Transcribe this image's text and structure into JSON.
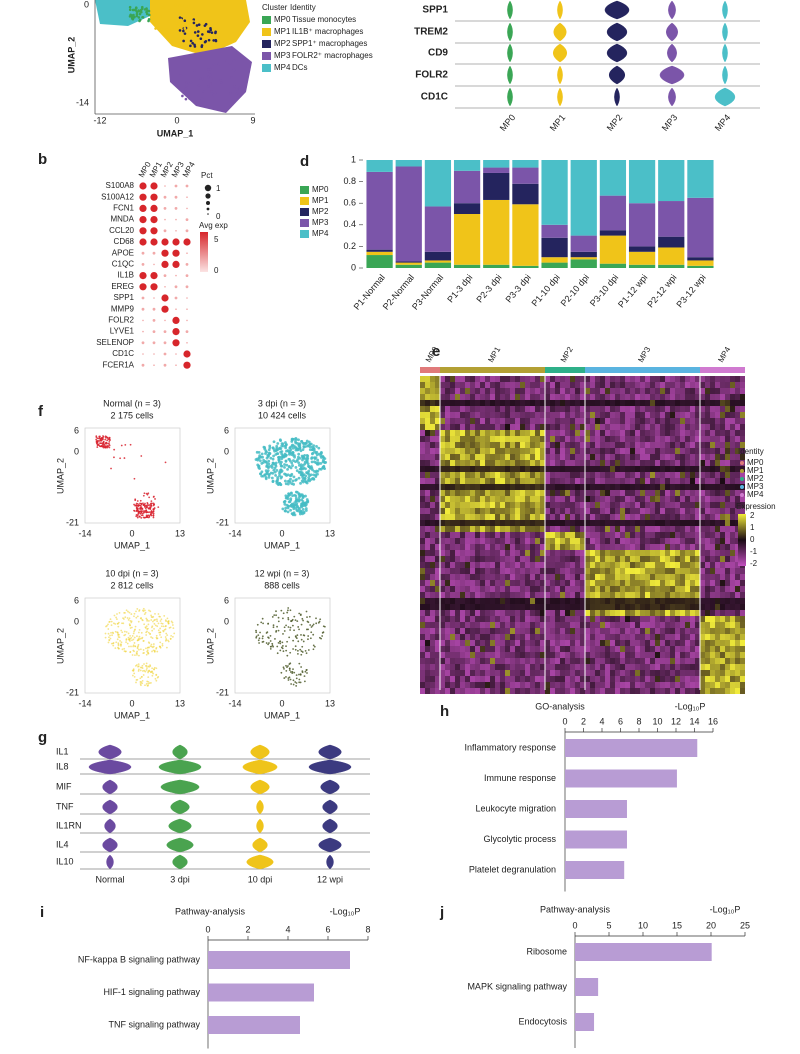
{
  "panel_a": {
    "y_label": "UMAP_2",
    "x_label": "UMAP_1",
    "y_ticks": [
      "0",
      "-14"
    ],
    "x_ticks": [
      "-12",
      "0",
      "9"
    ],
    "cluster_header": "Cluster",
    "identity_header": "Identity",
    "legend": [
      {
        "cluster": "MP0",
        "identity": "Tissue monocytes",
        "color": "#3aa655"
      },
      {
        "cluster": "MP1",
        "identity": "IL1B⁺ macrophages",
        "color": "#f0c419"
      },
      {
        "cluster": "MP2",
        "identity": "SPP1⁺ macrophages",
        "color": "#24245e"
      },
      {
        "cluster": "MP3",
        "identity": "FOLR2⁺ macrophages",
        "color": "#7b55a9"
      },
      {
        "cluster": "MP4",
        "identity": "DCs",
        "color": "#4bbfc8"
      }
    ]
  },
  "panel_violin": {
    "genes": [
      "SPP1",
      "TREM2",
      "CD9",
      "FOLR2",
      "CD1C"
    ],
    "clusters": [
      "MP0",
      "MP1",
      "MP2",
      "MP3",
      "MP4"
    ]
  },
  "panel_b": {
    "label": "b",
    "genes": [
      "S100A8",
      "S100A12",
      "FCN1",
      "MNDA",
      "CCL20",
      "CD68",
      "APOE",
      "C1QC",
      "IL1B",
      "EREG",
      "SPP1",
      "MMP9",
      "FOLR2",
      "LYVE1",
      "SELENOP",
      "CD1C",
      "FCER1A"
    ],
    "clusters": [
      "MP0",
      "MP1",
      "MP2",
      "MP3",
      "MP4"
    ],
    "pct_title": "Pct",
    "pct_ticks": [
      "1",
      "0"
    ],
    "exp_title": "Avg exp",
    "exp_ticks": [
      "5",
      "0"
    ]
  },
  "panel_e": {
    "label": "e",
    "clusters": [
      "MP0",
      "MP1",
      "MP2",
      "MP3",
      "MP4"
    ],
    "colors": [
      "#e07a7a",
      "#b3a034",
      "#2eb089",
      "#5ab4e0",
      "#d07ad0"
    ],
    "identity_title": "Identity",
    "expression_title": "Expression",
    "expression_ticks": [
      "2",
      "1",
      "0",
      "-1",
      "-2"
    ]
  },
  "panel_f": {
    "label": "f",
    "y_label": "UMAP_2",
    "x_label": "UMAP_1",
    "y_ticks": [
      "6",
      "0",
      "-21"
    ],
    "x_ticks": [
      "-14",
      "0",
      "13"
    ],
    "plots": [
      {
        "title": "Normal (n = 3)",
        "cells": "2 175 cells",
        "color": "#d8232f"
      },
      {
        "title": "3 dpi (n = 3)",
        "cells": "10 424 cells",
        "color": "#45bcc4"
      },
      {
        "title": "10 dpi (n = 3)",
        "cells": "2 812 cells",
        "color": "#f0d43a"
      },
      {
        "title": "12 wpi (n = 3)",
        "cells": "888 cells",
        "color": "#4d5a2a"
      }
    ]
  },
  "panel_g": {
    "label": "g",
    "genes": [
      "IL1",
      "IL8",
      "MIF",
      "TNF",
      "IL1RN",
      "IL4",
      "IL10"
    ],
    "conditions": [
      {
        "name": "Normal",
        "color": "#6b4aa0"
      },
      {
        "name": "3 dpi",
        "color": "#4aa34f"
      },
      {
        "name": "10 dpi",
        "color": "#efc41a"
      },
      {
        "name": "12 wpi",
        "color": "#3c3a80"
      }
    ]
  },
  "chart_data": [
    {
      "type": "stacked_bar",
      "label": "d",
      "categories": [
        "P1-Normal",
        "P2-Normal",
        "P3-Normal",
        "P1-3 dpi",
        "P2-3 dpi",
        "P3-3 dpi",
        "P1-10 dpi",
        "P2-10 dpi",
        "P3-10 dpi",
        "P1-12 wpi",
        "P2-12 wpi",
        "P3-12 wpi"
      ],
      "series": [
        {
          "name": "MP0",
          "color": "#3aa655",
          "values": [
            0.12,
            0.03,
            0.05,
            0.03,
            0.03,
            0.02,
            0.05,
            0.08,
            0.04,
            0.03,
            0.03,
            0.02
          ]
        },
        {
          "name": "MP1",
          "color": "#f0c419",
          "values": [
            0.03,
            0.02,
            0.02,
            0.47,
            0.6,
            0.57,
            0.05,
            0.02,
            0.26,
            0.12,
            0.16,
            0.05
          ]
        },
        {
          "name": "MP2",
          "color": "#24245e",
          "values": [
            0.02,
            0.01,
            0.08,
            0.1,
            0.25,
            0.19,
            0.18,
            0.05,
            0.05,
            0.05,
            0.1,
            0.03
          ]
        },
        {
          "name": "MP3",
          "color": "#7b55a9",
          "values": [
            0.72,
            0.88,
            0.42,
            0.3,
            0.05,
            0.15,
            0.12,
            0.15,
            0.32,
            0.4,
            0.33,
            0.55
          ]
        },
        {
          "name": "MP4",
          "color": "#4bbfc8",
          "values": [
            0.11,
            0.06,
            0.43,
            0.1,
            0.07,
            0.07,
            0.6,
            0.7,
            0.33,
            0.4,
            0.38,
            0.35
          ]
        }
      ],
      "ylim": [
        0,
        1
      ],
      "yticks": [
        0,
        0.2,
        0.4,
        0.6,
        0.8,
        1
      ]
    },
    {
      "type": "hbar",
      "label": "h",
      "title": "GO-analysis",
      "x_label": "-Log₁₀P",
      "categories": [
        "Inflammatory response",
        "Immune response",
        "Leukocyte migration",
        "Glycolytic process",
        "Platelet degranulation"
      ],
      "values": [
        14.3,
        12.1,
        6.7,
        6.7,
        6.4
      ],
      "color": "#b89cd4",
      "xlim": [
        0,
        16
      ],
      "xticks": [
        0,
        2,
        4,
        6,
        8,
        10,
        12,
        14,
        16
      ]
    },
    {
      "type": "hbar",
      "label": "i",
      "title": "Pathway-analysis",
      "x_label": "-Log₁₀P",
      "categories": [
        "NF-kappa B signaling pathway",
        "HIF-1 signaling pathway",
        "TNF signaling pathway"
      ],
      "values": [
        7.1,
        5.3,
        4.6
      ],
      "color": "#b89cd4",
      "xlim": [
        0,
        8
      ],
      "xticks": [
        0,
        2,
        4,
        6,
        8
      ]
    },
    {
      "type": "hbar",
      "label": "j",
      "title": "Pathway-analysis",
      "x_label": "-Log₁₀P",
      "categories": [
        "Ribosome",
        "MAPK signaling pathway",
        "Endocytosis"
      ],
      "values": [
        20.1,
        3.4,
        2.8
      ],
      "color": "#b89cd4",
      "xlim": [
        0,
        25
      ],
      "xticks": [
        0,
        5,
        10,
        15,
        20,
        25
      ]
    }
  ]
}
